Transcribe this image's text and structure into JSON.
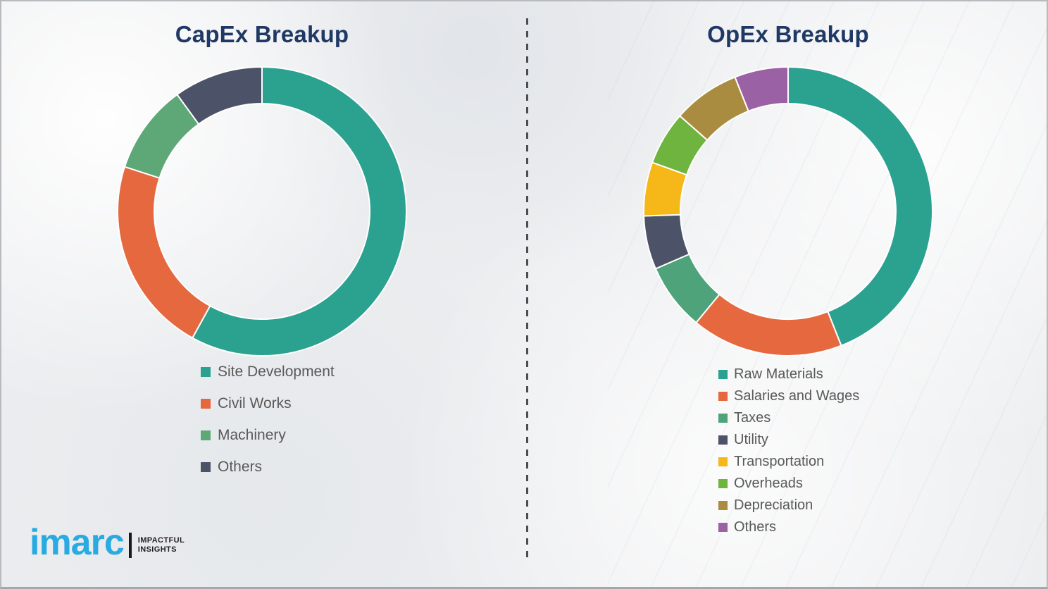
{
  "chart_data": [
    {
      "type": "pie",
      "subtype": "donut",
      "title": "CapEx Breakup",
      "categories": [
        "Site Development",
        "Civil Works",
        "Machinery",
        "Others"
      ],
      "values": [
        58,
        22,
        10,
        10
      ],
      "colors": [
        "#2ba18f",
        "#e5683f",
        "#5ea878",
        "#4c5267"
      ],
      "start_angle_deg": 0,
      "direction": "clockwise",
      "legend_position": "below-left",
      "data_labels": false,
      "value_format": "percent-estimated-from-arc-angles"
    },
    {
      "type": "pie",
      "subtype": "donut",
      "title": "OpEx Breakup",
      "categories": [
        "Raw Materials",
        "Salaries and Wages",
        "Taxes",
        "Utility",
        "Transportation",
        "Overheads",
        "Depreciation",
        "Others"
      ],
      "values": [
        44,
        17,
        7.5,
        6,
        6,
        6,
        7.5,
        6
      ],
      "colors": [
        "#2ba18f",
        "#e5683f",
        "#4fa37b",
        "#4c5267",
        "#f6b719",
        "#6fb43f",
        "#a98c3f",
        "#9a62a5"
      ],
      "start_angle_deg": 0,
      "direction": "clockwise",
      "legend_position": "below-left",
      "data_labels": false,
      "value_format": "percent-estimated-from-arc-angles"
    }
  ],
  "divider": {
    "style": "dashed-vertical",
    "color": "#4d4d4d"
  },
  "logo": {
    "brand": "imarc",
    "tagline_line1": "IMPACTFUL",
    "tagline_line2": "INSIGHTS",
    "brand_color": "#29abe2"
  },
  "theme": {
    "background": "#edeef0",
    "title_color": "#1f3864",
    "legend_text_color": "#595959",
    "segment_gap_color": "#ffffff"
  }
}
